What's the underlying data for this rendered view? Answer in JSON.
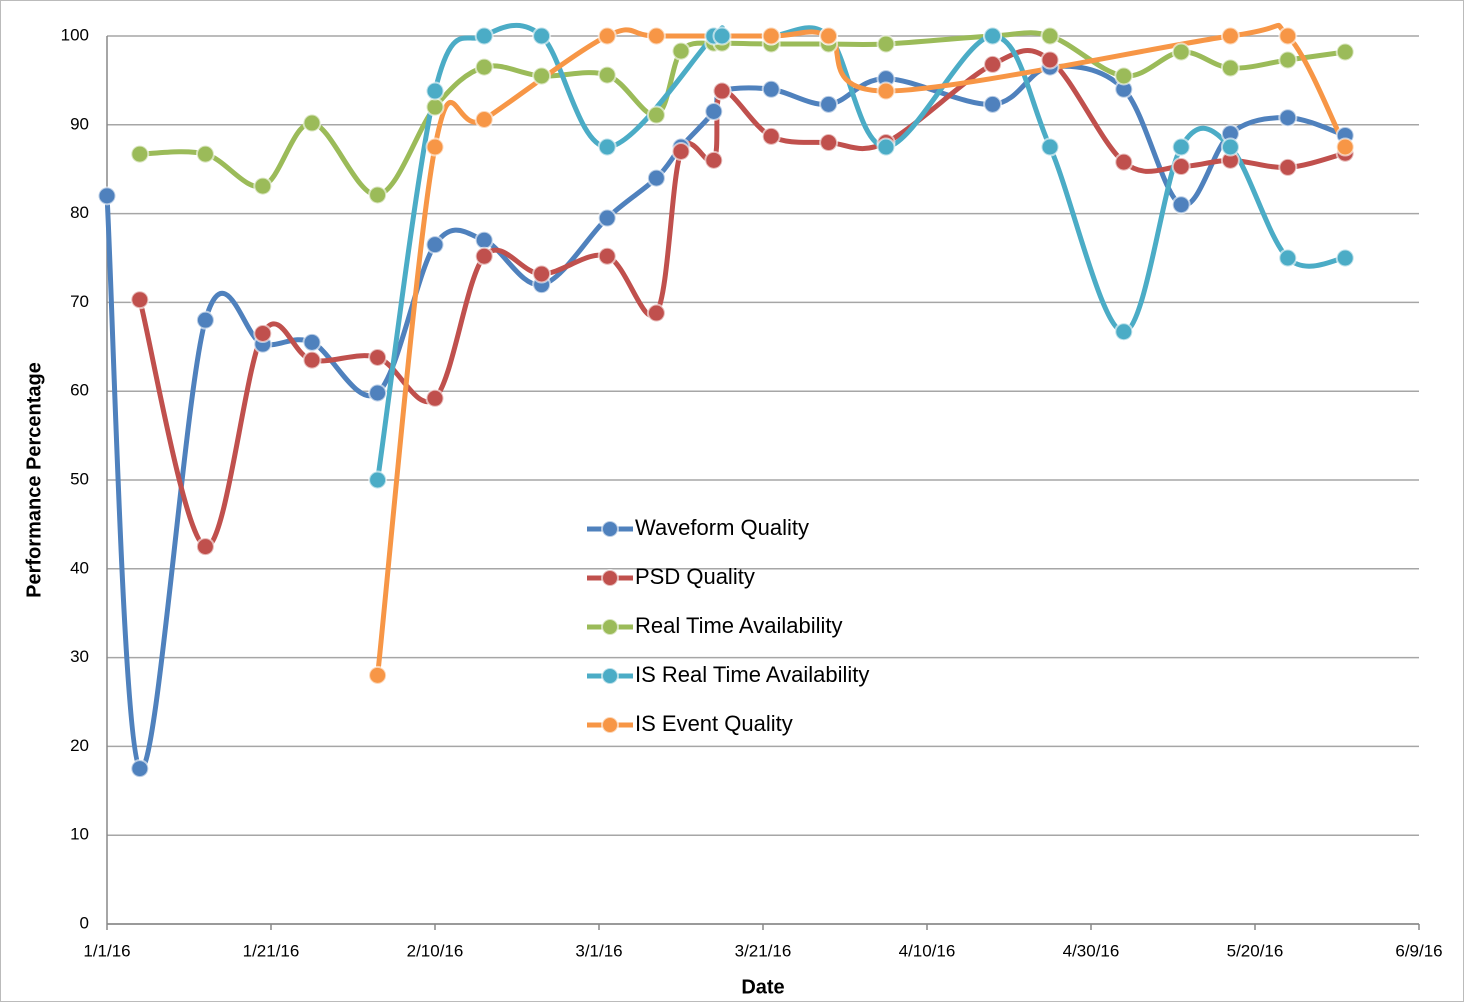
{
  "chart_data": {
    "type": "line",
    "xlabel": "Date",
    "ylabel": "Performance Percentage",
    "xlim": [
      "1/1/16",
      "6/9/16"
    ],
    "xticks": [
      "1/1/16",
      "1/21/16",
      "2/10/16",
      "3/1/16",
      "3/21/16",
      "4/10/16",
      "4/30/16",
      "5/20/16",
      "6/9/16"
    ],
    "ylim": [
      0,
      100
    ],
    "yticks": [
      0,
      10,
      20,
      30,
      40,
      50,
      60,
      70,
      80,
      90,
      100
    ],
    "grid": true,
    "legend": "center",
    "series": [
      {
        "name": "Waveform Quality",
        "color": "#4f81bd",
        "x": [
          "1/1/16",
          "1/5/16",
          "1/13/16",
          "1/20/16",
          "1/26/16",
          "2/3/16",
          "2/10/16",
          "2/16/16",
          "2/23/16",
          "3/2/16",
          "3/8/16",
          "3/11/16",
          "3/15/16",
          "3/16/16",
          "3/22/16",
          "3/29/16",
          "4/5/16",
          "4/18/16",
          "4/25/16",
          "5/4/16",
          "5/11/16",
          "5/17/16",
          "5/24/16",
          "5/31/16"
        ],
        "values": [
          82,
          17.5,
          68,
          65.3,
          65.5,
          59.8,
          76.5,
          77,
          72,
          79.5,
          84,
          87.5,
          91.5,
          93.8,
          94,
          92.3,
          95.2,
          92.3,
          96.5,
          94,
          81,
          89,
          90.8,
          88.8
        ]
      },
      {
        "name": "PSD Quality",
        "color": "#c0504d",
        "x": [
          "1/5/16",
          "1/13/16",
          "1/20/16",
          "1/26/16",
          "2/3/16",
          "2/10/16",
          "2/16/16",
          "2/23/16",
          "3/2/16",
          "3/8/16",
          "3/11/16",
          "3/15/16",
          "3/16/16",
          "3/22/16",
          "3/29/16",
          "4/5/16",
          "4/18/16",
          "4/25/16",
          "5/4/16",
          "5/11/16",
          "5/17/16",
          "5/24/16",
          "5/31/16"
        ],
        "values": [
          70.3,
          42.5,
          66.5,
          63.5,
          63.8,
          59.2,
          75.2,
          73.2,
          75.2,
          68.8,
          87,
          86,
          93.8,
          88.7,
          88,
          88,
          96.8,
          97.3,
          85.8,
          85.3,
          86,
          85.2,
          86.8
        ]
      },
      {
        "name": "Real Time Availability",
        "color": "#9bbb59",
        "x": [
          "1/5/16",
          "1/13/16",
          "1/20/16",
          "1/26/16",
          "2/3/16",
          "2/10/16",
          "2/16/16",
          "2/23/16",
          "3/2/16",
          "3/8/16",
          "3/11/16",
          "3/15/16",
          "3/16/16",
          "3/22/16",
          "3/29/16",
          "4/5/16",
          "4/18/16",
          "4/25/16",
          "5/4/16",
          "5/11/16",
          "5/17/16",
          "5/24/16",
          "5/31/16"
        ],
        "values": [
          86.7,
          86.7,
          83.1,
          90.2,
          82.1,
          92,
          96.5,
          95.5,
          95.6,
          91.1,
          98.3,
          99.2,
          99.2,
          99.1,
          99.1,
          99.1,
          100,
          100,
          95.5,
          98.2,
          96.4,
          97.3,
          98.2
        ]
      },
      {
        "name": "IS Real Time Availability",
        "color": "#4bacc6",
        "x": [
          "2/3/16",
          "2/10/16",
          "2/16/16",
          "2/23/16",
          "3/2/16",
          "3/15/16",
          "3/16/16",
          "3/22/16",
          "3/29/16",
          "4/5/16",
          "4/18/16",
          "4/25/16",
          "5/4/16",
          "5/11/16",
          "5/17/16",
          "5/24/16",
          "5/31/16"
        ],
        "values": [
          50,
          93.8,
          100,
          100,
          87.5,
          100,
          100,
          100,
          100,
          87.5,
          100,
          87.5,
          66.7,
          87.5,
          87.5,
          75,
          75
        ]
      },
      {
        "name": "IS Event Quality",
        "color": "#f79646",
        "x": [
          "2/3/16",
          "2/10/16",
          "2/16/16",
          "3/2/16",
          "3/8/16",
          "3/22/16",
          "3/29/16",
          "4/5/16",
          "5/17/16",
          "5/24/16",
          "5/31/16"
        ],
        "values": [
          28,
          87.5,
          90.6,
          100,
          100,
          100,
          100,
          93.8,
          100,
          100,
          87.5
        ]
      }
    ]
  }
}
